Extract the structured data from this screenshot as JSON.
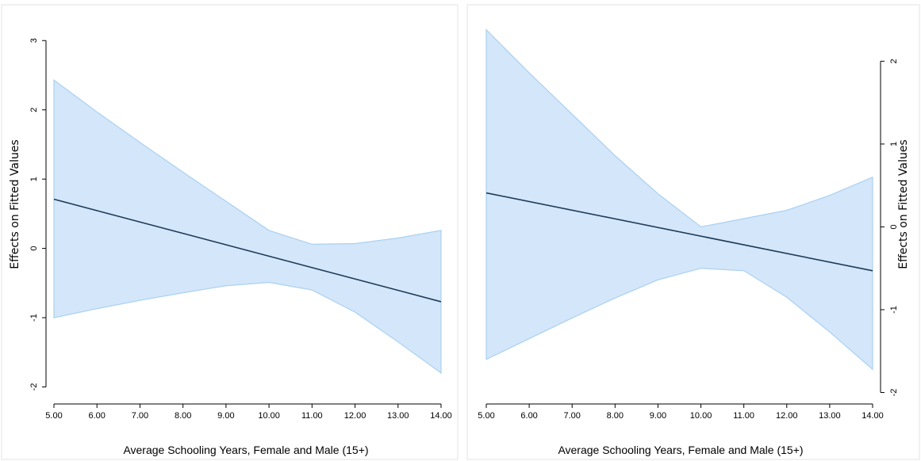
{
  "chart_data": [
    {
      "type": "line",
      "xlabel": "Average Schooling Years, Female and Male (15+)",
      "ylabel": "Effects on Fitted Values",
      "x_ticks": [
        "5.00",
        "6.00",
        "7.00",
        "8.00",
        "9.00",
        "10.00",
        "11.00",
        "12.00",
        "13.00",
        "14.00"
      ],
      "y_ticks": [
        "-2",
        "-1",
        "0",
        "1",
        "2",
        "3"
      ],
      "xlim": [
        5,
        14
      ],
      "ylim": [
        -2.2,
        3.3
      ],
      "series": [
        {
          "role": "line",
          "x": [
            5,
            14
          ],
          "y": [
            0.71,
            -0.77
          ]
        },
        {
          "role": "ci_upper",
          "x": [
            5,
            6,
            7,
            8,
            9,
            10,
            11,
            12,
            13,
            14
          ],
          "y": [
            2.43,
            1.97,
            1.53,
            1.1,
            0.68,
            0.26,
            0.06,
            0.07,
            0.15,
            0.26
          ]
        },
        {
          "role": "ci_lower",
          "x": [
            5,
            6,
            7,
            8,
            9,
            10,
            11,
            12,
            13,
            14
          ],
          "y": [
            -1.0,
            -0.87,
            -0.75,
            -0.64,
            -0.54,
            -0.49,
            -0.6,
            -0.92,
            -1.35,
            -1.8
          ]
        }
      ],
      "y_axis_side": "left",
      "grid": false,
      "colors": {
        "line": "#1f3c58",
        "band_fill": "#d4e6fa",
        "band_edge": "#a9d1f1"
      }
    },
    {
      "type": "line",
      "xlabel": "Average Schooling Years, Female and Male (15+)",
      "ylabel": "Effects on Fitted Values",
      "x_ticks": [
        "5.00",
        "6.00",
        "7.00",
        "8.00",
        "9.00",
        "10.00",
        "11.00",
        "12.00",
        "13.00",
        "14.00"
      ],
      "y_ticks": [
        "-2",
        "-1",
        "0",
        "1",
        "2"
      ],
      "xlim": [
        5,
        14
      ],
      "ylim": [
        -2.1,
        2.5
      ],
      "series": [
        {
          "role": "line",
          "x": [
            5,
            14
          ],
          "y": [
            0.41,
            -0.53
          ]
        },
        {
          "role": "ci_upper",
          "x": [
            5,
            6,
            7,
            8,
            9,
            10,
            11,
            12,
            13,
            14
          ],
          "y": [
            2.38,
            1.86,
            1.36,
            0.86,
            0.4,
            0.0,
            0.1,
            0.2,
            0.38,
            0.6
          ]
        },
        {
          "role": "ci_lower",
          "x": [
            5,
            6,
            7,
            8,
            9,
            10,
            11,
            12,
            13,
            14
          ],
          "y": [
            -1.6,
            -1.35,
            -1.1,
            -0.86,
            -0.64,
            -0.5,
            -0.53,
            -0.85,
            -1.27,
            -1.72
          ]
        }
      ],
      "y_axis_side": "right",
      "grid": false,
      "colors": {
        "line": "#1f3c58",
        "band_fill": "#d4e6fa",
        "band_edge": "#a9d1f1"
      }
    }
  ]
}
